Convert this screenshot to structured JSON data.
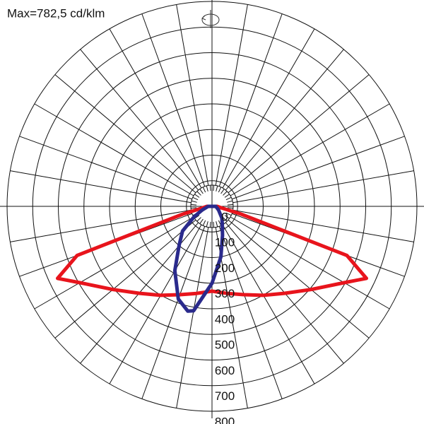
{
  "chart_data": {
    "type": "polar",
    "title": "Max=782,5 cd/klm",
    "rlim": [
      0,
      800
    ],
    "rticks": [
      0,
      100,
      200,
      300,
      400,
      500,
      600,
      700,
      800
    ],
    "series": [
      {
        "color": "#e8141c",
        "angles": [
          -90,
          -80,
          -75,
          -70,
          -65,
          -60,
          -50,
          -40,
          -30,
          -20,
          -10,
          0,
          10,
          20,
          30,
          40,
          50,
          60,
          65,
          70,
          75,
          80,
          90
        ],
        "values": [
          20,
          40,
          120,
          560,
          665,
          596,
          505,
          443,
          401,
          367,
          345,
          331,
          345,
          367,
          401,
          443,
          505,
          596,
          665,
          560,
          120,
          40,
          20
        ]
      },
      {
        "color": "#2a2a8c",
        "angles": [
          -90,
          -70,
          -60,
          -50,
          -40,
          -30,
          -20,
          -13,
          -10,
          0,
          10,
          20,
          30,
          40,
          60,
          90
        ],
        "values": [
          15,
          40,
          80,
          150,
          200,
          290,
          385,
          420,
          414,
          300,
          200,
          120,
          80,
          60,
          30,
          15
        ]
      }
    ]
  }
}
